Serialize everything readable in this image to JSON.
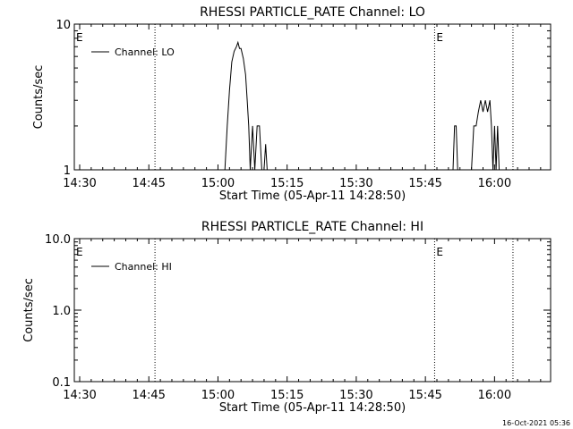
{
  "timestamp": "16-Oct-2021 05:36",
  "chart_data": [
    {
      "type": "line",
      "title": "RHESSI PARTICLE_RATE Channel: LO",
      "xlabel": "Start Time (05-Apr-11 14:28:50)",
      "ylabel": "Counts/sec",
      "yscale": "log",
      "xlim": [
        "14:28:50",
        "16:12:10"
      ],
      "ylim": [
        1,
        10
      ],
      "x_ticks": [
        "14:30",
        "14:45",
        "15:00",
        "15:15",
        "15:30",
        "15:45",
        "16:00"
      ],
      "y_ticks": [
        {
          "value": 1,
          "label": "1"
        },
        {
          "value": 10,
          "label": "10"
        }
      ],
      "legend": {
        "entries": [
          "Channel: LO"
        ],
        "position": "top-left"
      },
      "vlines": [
        {
          "time": "14:28:50",
          "label": "E",
          "style": "dotted"
        },
        {
          "time": "14:46:20",
          "label": "",
          "style": "dotted"
        },
        {
          "time": "15:47:00",
          "label": "E",
          "style": "dotted"
        },
        {
          "time": "16:04:00",
          "label": "",
          "style": "dotted"
        }
      ],
      "series": [
        {
          "name": "Channel: LO",
          "segments": [
            {
              "x": [
                "15:01:30",
                "15:02:00",
                "15:02:30",
                "15:03:00",
                "15:03:30",
                "15:04:00",
                "15:04:20",
                "15:04:40",
                "15:05:00",
                "15:05:30",
                "15:06:00",
                "15:06:20",
                "15:06:40",
                "15:07:00",
                "15:07:30",
                "15:08:00",
                "15:08:30",
                "15:09:00",
                "15:09:30",
                "15:10:00",
                "15:10:20",
                "15:10:40"
              ],
              "y": [
                1,
                2,
                3.5,
                5.5,
                6.5,
                7,
                7.5,
                6.8,
                6.8,
                5.8,
                4.5,
                3,
                2,
                1,
                2,
                1,
                2,
                2,
                1,
                1,
                1.5,
                1
              ]
            },
            {
              "x": [
                "15:51:00",
                "15:51:20",
                "15:51:40",
                "15:52:00"
              ],
              "y": [
                1,
                2,
                2,
                1
              ]
            },
            {
              "x": [
                "15:55:00",
                "15:55:30",
                "15:56:00",
                "15:56:30",
                "15:57:00",
                "15:57:30",
                "15:58:00",
                "15:58:30",
                "15:59:00",
                "15:59:20",
                "15:59:40",
                "16:00:00",
                "16:00:20",
                "16:00:40",
                "16:01:00"
              ],
              "y": [
                1,
                2,
                2,
                2.5,
                3,
                2.5,
                3,
                2.5,
                3,
                2,
                1,
                2,
                1,
                2,
                1
              ]
            }
          ]
        }
      ]
    },
    {
      "type": "line",
      "title": "RHESSI PARTICLE_RATE Channel: HI",
      "xlabel": "Start Time (05-Apr-11 14:28:50)",
      "ylabel": "Counts/sec",
      "yscale": "log",
      "xlim": [
        "14:28:50",
        "16:12:10"
      ],
      "ylim": [
        0.1,
        10
      ],
      "x_ticks": [
        "14:30",
        "14:45",
        "15:00",
        "15:15",
        "15:30",
        "15:45",
        "16:00"
      ],
      "y_ticks": [
        {
          "value": 0.1,
          "label": "0.1"
        },
        {
          "value": 1,
          "label": "1.0"
        },
        {
          "value": 10,
          "label": "10.0"
        }
      ],
      "legend": {
        "entries": [
          "Channel: HI"
        ],
        "position": "top-left"
      },
      "vlines": [
        {
          "time": "14:28:50",
          "label": "E",
          "style": "dotted"
        },
        {
          "time": "14:46:20",
          "label": "",
          "style": "dotted"
        },
        {
          "time": "15:47:00",
          "label": "E",
          "style": "dotted"
        },
        {
          "time": "16:04:00",
          "label": "",
          "style": "dotted"
        }
      ],
      "series": [
        {
          "name": "Channel: HI",
          "segments": []
        }
      ]
    }
  ]
}
